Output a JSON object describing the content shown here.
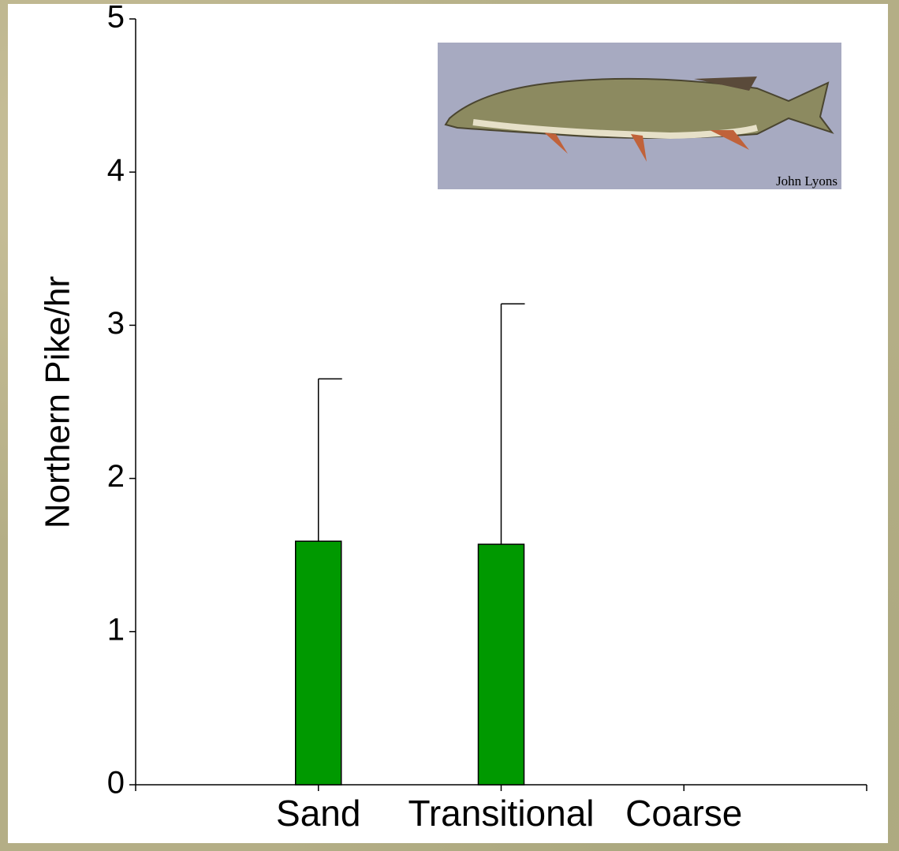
{
  "chart_data": {
    "type": "bar",
    "ylabel": "Northern Pike/hr",
    "categories": [
      "Sand",
      "Transitional",
      "Coarse"
    ],
    "values": [
      1.59,
      1.57,
      null
    ],
    "errors": [
      1.06,
      1.57,
      null
    ],
    "color": "#009900",
    "ylim": [
      0,
      5
    ],
    "yticks": [
      0,
      1,
      2,
      3,
      4,
      5
    ],
    "annotations": [
      "John Lyons"
    ]
  }
}
